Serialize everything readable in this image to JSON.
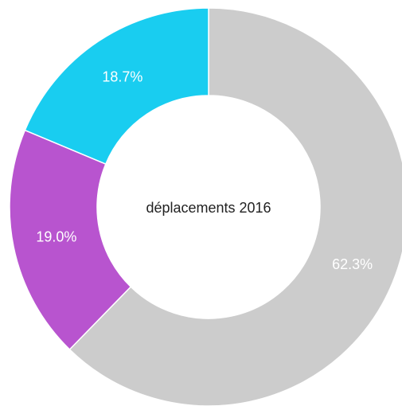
{
  "chart_data": {
    "type": "donut",
    "title": "déplacements 2016",
    "values": [
      62.3,
      19.0,
      18.7
    ],
    "value_labels": [
      "62.3%",
      "19.0%",
      "18.7%"
    ],
    "colors": [
      "#cccccc",
      "#b854cf",
      "#19cdf0"
    ]
  }
}
